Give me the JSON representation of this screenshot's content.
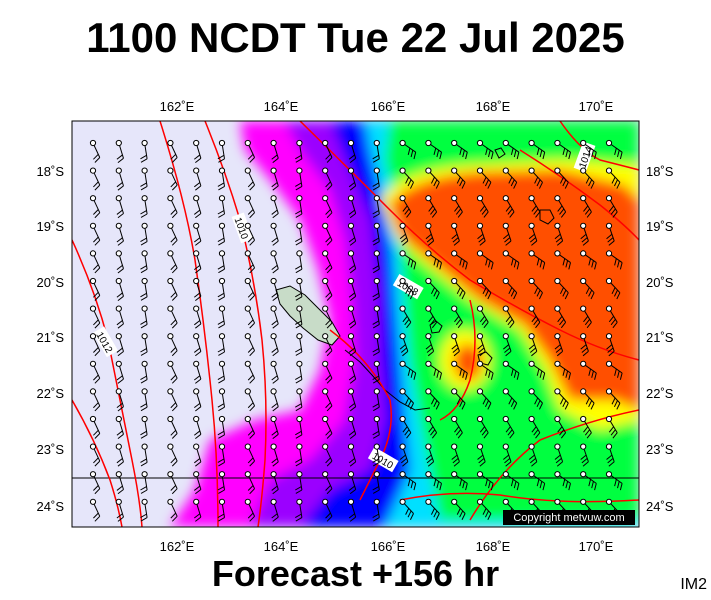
{
  "title": "1100 NCDT Tue 22 Jul 2025",
  "footer": "Forecast +156 hr",
  "corner_label": "IM2",
  "copyright": "Copyright metvuw.com",
  "lon_ticks": [
    "162˚E",
    "164˚E",
    "166˚E",
    "168˚E",
    "170˚E"
  ],
  "lat_ticks": [
    "18˚S",
    "19˚S",
    "20˚S",
    "21˚S",
    "22˚S",
    "23˚S",
    "24˚S"
  ],
  "isobar_labels": [
    "1010",
    "1008",
    "1012",
    "1010",
    "1014"
  ],
  "colors": {
    "calm": "#e6e6fa",
    "magenta": "#ff00ff",
    "purple": "#9b00ff",
    "blue": "#0000ff",
    "cyan": "#00e0ff",
    "green": "#00ff40",
    "yellow": "#ffff00",
    "orange": "#ff5000",
    "isobar": "#ff0000",
    "land": "#c8dcc8"
  },
  "map_data": {
    "lon_range": [
      160.2,
      171.0
    ],
    "lat_range": [
      -24.4,
      -17.0
    ],
    "tropic_of_capricorn": -23.5
  }
}
